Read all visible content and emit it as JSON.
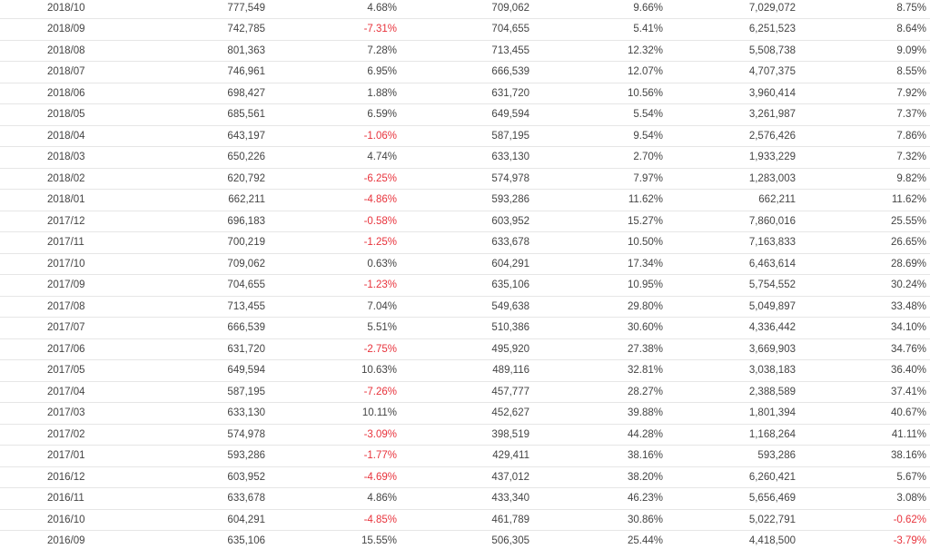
{
  "colors": {
    "text": "#444444",
    "negative": "#e8333c",
    "row_border": "#e6e6e6"
  },
  "rows": [
    [
      "2018/10",
      "777,549",
      "4.68%",
      "709,062",
      "9.66%",
      "7,029,072",
      "8.75%"
    ],
    [
      "2018/09",
      "742,785",
      "-7.31%",
      "704,655",
      "5.41%",
      "6,251,523",
      "8.64%"
    ],
    [
      "2018/08",
      "801,363",
      "7.28%",
      "713,455",
      "12.32%",
      "5,508,738",
      "9.09%"
    ],
    [
      "2018/07",
      "746,961",
      "6.95%",
      "666,539",
      "12.07%",
      "4,707,375",
      "8.55%"
    ],
    [
      "2018/06",
      "698,427",
      "1.88%",
      "631,720",
      "10.56%",
      "3,960,414",
      "7.92%"
    ],
    [
      "2018/05",
      "685,561",
      "6.59%",
      "649,594",
      "5.54%",
      "3,261,987",
      "7.37%"
    ],
    [
      "2018/04",
      "643,197",
      "-1.06%",
      "587,195",
      "9.54%",
      "2,576,426",
      "7.86%"
    ],
    [
      "2018/03",
      "650,226",
      "4.74%",
      "633,130",
      "2.70%",
      "1,933,229",
      "7.32%"
    ],
    [
      "2018/02",
      "620,792",
      "-6.25%",
      "574,978",
      "7.97%",
      "1,283,003",
      "9.82%"
    ],
    [
      "2018/01",
      "662,211",
      "-4.86%",
      "593,286",
      "11.62%",
      "662,211",
      "11.62%"
    ],
    [
      "2017/12",
      "696,183",
      "-0.58%",
      "603,952",
      "15.27%",
      "7,860,016",
      "25.55%"
    ],
    [
      "2017/11",
      "700,219",
      "-1.25%",
      "633,678",
      "10.50%",
      "7,163,833",
      "26.65%"
    ],
    [
      "2017/10",
      "709,062",
      "0.63%",
      "604,291",
      "17.34%",
      "6,463,614",
      "28.69%"
    ],
    [
      "2017/09",
      "704,655",
      "-1.23%",
      "635,106",
      "10.95%",
      "5,754,552",
      "30.24%"
    ],
    [
      "2017/08",
      "713,455",
      "7.04%",
      "549,638",
      "29.80%",
      "5,049,897",
      "33.48%"
    ],
    [
      "2017/07",
      "666,539",
      "5.51%",
      "510,386",
      "30.60%",
      "4,336,442",
      "34.10%"
    ],
    [
      "2017/06",
      "631,720",
      "-2.75%",
      "495,920",
      "27.38%",
      "3,669,903",
      "34.76%"
    ],
    [
      "2017/05",
      "649,594",
      "10.63%",
      "489,116",
      "32.81%",
      "3,038,183",
      "36.40%"
    ],
    [
      "2017/04",
      "587,195",
      "-7.26%",
      "457,777",
      "28.27%",
      "2,388,589",
      "37.41%"
    ],
    [
      "2017/03",
      "633,130",
      "10.11%",
      "452,627",
      "39.88%",
      "1,801,394",
      "40.67%"
    ],
    [
      "2017/02",
      "574,978",
      "-3.09%",
      "398,519",
      "44.28%",
      "1,168,264",
      "41.11%"
    ],
    [
      "2017/01",
      "593,286",
      "-1.77%",
      "429,411",
      "38.16%",
      "593,286",
      "38.16%"
    ],
    [
      "2016/12",
      "603,952",
      "-4.69%",
      "437,012",
      "38.20%",
      "6,260,421",
      "5.67%"
    ],
    [
      "2016/11",
      "633,678",
      "4.86%",
      "433,340",
      "46.23%",
      "5,656,469",
      "3.08%"
    ],
    [
      "2016/10",
      "604,291",
      "-4.85%",
      "461,789",
      "30.86%",
      "5,022,791",
      "-0.62%"
    ],
    [
      "2016/09",
      "635,106",
      "15.55%",
      "506,305",
      "25.44%",
      "4,418,500",
      "-3.79%"
    ]
  ]
}
